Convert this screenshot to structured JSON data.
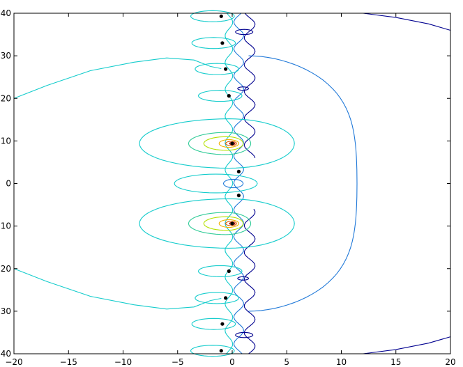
{
  "chart_data": {
    "type": "contour",
    "title": "",
    "xlabel": "",
    "ylabel": "",
    "xlim": [
      -20,
      20
    ],
    "ylim": [
      -40,
      40
    ],
    "grid": false,
    "legend": "none",
    "xticks": [
      -20,
      -15,
      -10,
      -5,
      0,
      5,
      10,
      15,
      20
    ],
    "yticks": [
      -40,
      -30,
      -20,
      -10,
      0,
      10,
      20,
      30,
      40
    ],
    "points": [
      {
        "x": -1.0,
        "y": 39.3
      },
      {
        "x": -0.9,
        "y": 33.0
      },
      {
        "x": -0.6,
        "y": 26.9
      },
      {
        "x": -0.3,
        "y": 20.6
      },
      {
        "x": 0.0,
        "y": 9.4
      },
      {
        "x": 0.6,
        "y": 2.8
      },
      {
        "x": 0.6,
        "y": -2.8
      },
      {
        "x": 0.0,
        "y": -9.4
      },
      {
        "x": -0.3,
        "y": -20.6
      },
      {
        "x": -0.6,
        "y": -26.9
      },
      {
        "x": -0.9,
        "y": -33.0
      },
      {
        "x": -1.0,
        "y": -39.3
      }
    ],
    "colors": {
      "level_1": "#00008f",
      "level_2": "#0033cc",
      "level_3": "#1f78d8",
      "level_4": "#14cccc",
      "level_5": "#33cc99",
      "level_6": "#b4e000",
      "level_7": "#f0b000",
      "level_8": "#e05a00",
      "level_9": "#a00000"
    }
  }
}
